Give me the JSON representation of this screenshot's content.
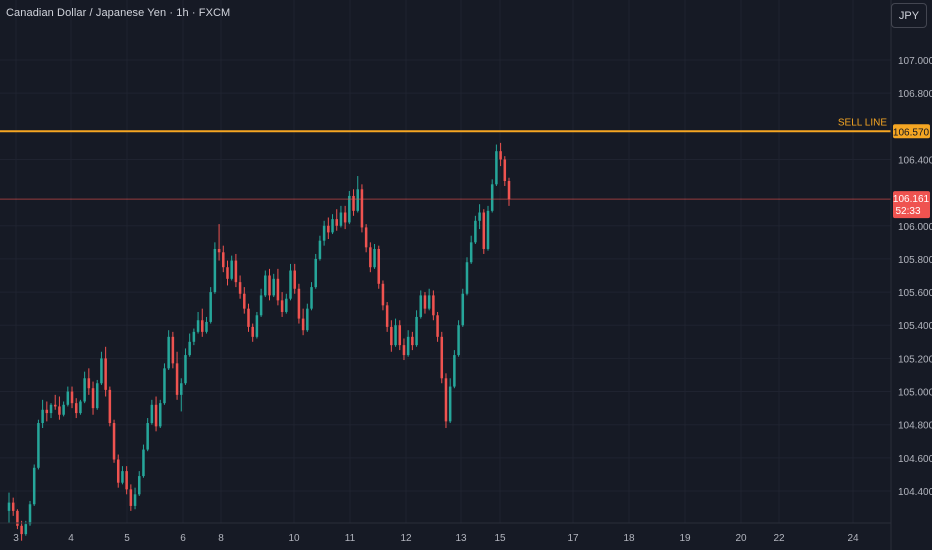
{
  "header": {
    "title": "Canadian Dollar / Japanese Yen · 1h · FXCM",
    "currency_button": "JPY"
  },
  "colors": {
    "background": "#161a25",
    "grid": "#1f2330",
    "axis_text": "#b2b5be",
    "up_candle": "#26a69a",
    "down_candle": "#ef5350",
    "sell_line": "#f5a623",
    "last_price_line": "#ef5350"
  },
  "chart_data": {
    "type": "candlestick",
    "title": "Canadian Dollar / Japanese Yen · 1h · FXCM",
    "x_ticks": [
      "3",
      "4",
      "5",
      "6",
      "8",
      "10",
      "11",
      "12",
      "13",
      "15",
      "17",
      "18",
      "19",
      "20",
      "22",
      "24"
    ],
    "y_ticks": [
      "107.000",
      "106.800",
      "106.400",
      "106.000",
      "105.800",
      "105.600",
      "105.400",
      "105.200",
      "105.000",
      "104.800",
      "104.600",
      "104.400"
    ],
    "ylim": [
      104.2,
      107.0
    ],
    "sell_line": {
      "label": "SELL LINE",
      "value": 106.57,
      "value_label": "106.570"
    },
    "last_price": {
      "value": 106.161,
      "value_label": "106.161",
      "countdown": "52:33"
    },
    "candles_ohlc": [
      [
        104.28,
        104.39,
        104.21,
        104.33
      ],
      [
        104.33,
        104.36,
        104.25,
        104.28
      ],
      [
        104.28,
        104.29,
        104.17,
        104.19
      ],
      [
        104.19,
        104.22,
        104.1,
        104.14
      ],
      [
        104.14,
        104.22,
        104.13,
        104.2
      ],
      [
        104.2,
        104.34,
        104.19,
        104.32
      ],
      [
        104.32,
        104.56,
        104.31,
        104.54
      ],
      [
        104.54,
        104.83,
        104.53,
        104.81
      ],
      [
        104.81,
        104.95,
        104.78,
        104.89
      ],
      [
        104.89,
        104.94,
        104.82,
        104.87
      ],
      [
        104.87,
        104.93,
        104.84,
        104.92
      ],
      [
        104.92,
        104.98,
        104.89,
        104.91
      ],
      [
        104.91,
        104.97,
        104.83,
        104.86
      ],
      [
        104.86,
        104.94,
        104.85,
        104.92
      ],
      [
        104.92,
        105.03,
        104.91,
        105.0
      ],
      [
        105.0,
        105.03,
        104.9,
        104.93
      ],
      [
        104.93,
        104.96,
        104.84,
        104.87
      ],
      [
        104.87,
        104.95,
        104.86,
        104.94
      ],
      [
        104.94,
        105.12,
        104.93,
        105.08
      ],
      [
        105.08,
        105.14,
        104.98,
        105.02
      ],
      [
        105.02,
        105.06,
        104.86,
        104.9
      ],
      [
        104.9,
        105.07,
        104.89,
        105.05
      ],
      [
        105.05,
        105.24,
        105.04,
        105.2
      ],
      [
        105.2,
        105.27,
        104.97,
        105.01
      ],
      [
        105.01,
        105.03,
        104.79,
        104.81
      ],
      [
        104.81,
        104.83,
        104.57,
        104.59
      ],
      [
        104.59,
        104.62,
        104.42,
        104.45
      ],
      [
        104.45,
        104.55,
        104.44,
        104.52
      ],
      [
        104.52,
        104.55,
        104.38,
        104.41
      ],
      [
        104.41,
        104.44,
        104.28,
        104.31
      ],
      [
        104.31,
        104.42,
        104.29,
        104.38
      ],
      [
        104.38,
        104.52,
        104.37,
        104.49
      ],
      [
        104.49,
        104.68,
        104.48,
        104.65
      ],
      [
        104.65,
        104.84,
        104.64,
        104.81
      ],
      [
        104.81,
        104.95,
        104.8,
        104.92
      ],
      [
        104.92,
        104.97,
        104.76,
        104.79
      ],
      [
        104.79,
        104.95,
        104.78,
        104.93
      ],
      [
        104.93,
        105.17,
        104.92,
        105.14
      ],
      [
        105.14,
        105.37,
        105.13,
        105.33
      ],
      [
        105.33,
        105.36,
        105.14,
        105.17
      ],
      [
        105.17,
        105.24,
        104.95,
        104.98
      ],
      [
        104.98,
        105.08,
        104.88,
        105.05
      ],
      [
        105.05,
        105.26,
        105.04,
        105.22
      ],
      [
        105.22,
        105.35,
        105.21,
        105.3
      ],
      [
        105.3,
        105.38,
        105.28,
        105.36
      ],
      [
        105.36,
        105.48,
        105.35,
        105.43
      ],
      [
        105.43,
        105.5,
        105.33,
        105.36
      ],
      [
        105.36,
        105.45,
        105.35,
        105.42
      ],
      [
        105.42,
        105.63,
        105.41,
        105.6
      ],
      [
        105.6,
        105.9,
        105.59,
        105.86
      ],
      [
        105.86,
        106.01,
        105.79,
        105.84
      ],
      [
        105.84,
        105.88,
        105.72,
        105.75
      ],
      [
        105.75,
        105.79,
        105.64,
        105.68
      ],
      [
        105.68,
        105.82,
        105.67,
        105.79
      ],
      [
        105.79,
        105.83,
        105.63,
        105.66
      ],
      [
        105.66,
        105.7,
        105.56,
        105.59
      ],
      [
        105.59,
        105.63,
        105.47,
        105.5
      ],
      [
        105.5,
        105.53,
        105.36,
        105.39
      ],
      [
        105.39,
        105.41,
        105.3,
        105.33
      ],
      [
        105.33,
        105.48,
        105.32,
        105.46
      ],
      [
        105.46,
        105.62,
        105.45,
        105.58
      ],
      [
        105.58,
        105.73,
        105.57,
        105.7
      ],
      [
        105.7,
        105.74,
        105.55,
        105.58
      ],
      [
        105.58,
        105.71,
        105.57,
        105.68
      ],
      [
        105.68,
        105.74,
        105.52,
        105.55
      ],
      [
        105.55,
        105.6,
        105.45,
        105.48
      ],
      [
        105.48,
        105.59,
        105.47,
        105.56
      ],
      [
        105.56,
        105.77,
        105.55,
        105.73
      ],
      [
        105.73,
        105.77,
        105.59,
        105.62
      ],
      [
        105.62,
        105.65,
        105.41,
        105.44
      ],
      [
        105.44,
        105.5,
        105.34,
        105.37
      ],
      [
        105.37,
        105.53,
        105.36,
        105.5
      ],
      [
        105.5,
        105.66,
        105.49,
        105.63
      ],
      [
        105.63,
        105.83,
        105.62,
        105.8
      ],
      [
        105.8,
        105.94,
        105.79,
        105.91
      ],
      [
        105.91,
        106.03,
        105.88,
        106.0
      ],
      [
        106.0,
        106.05,
        105.92,
        105.96
      ],
      [
        105.96,
        106.07,
        105.95,
        106.04
      ],
      [
        106.04,
        106.1,
        105.97,
        106.0
      ],
      [
        106.0,
        106.12,
        105.99,
        106.08
      ],
      [
        106.08,
        106.12,
        105.98,
        106.02
      ],
      [
        106.02,
        106.21,
        106.01,
        106.18
      ],
      [
        106.18,
        106.22,
        106.06,
        106.09
      ],
      [
        106.09,
        106.3,
        106.08,
        106.22
      ],
      [
        106.22,
        106.25,
        105.96,
        105.99
      ],
      [
        105.99,
        106.01,
        105.84,
        105.87
      ],
      [
        105.87,
        105.9,
        105.72,
        105.75
      ],
      [
        105.75,
        105.89,
        105.74,
        105.86
      ],
      [
        105.86,
        105.88,
        105.62,
        105.65
      ],
      [
        105.65,
        105.67,
        105.49,
        105.52
      ],
      [
        105.52,
        105.54,
        105.36,
        105.39
      ],
      [
        105.39,
        105.43,
        105.24,
        105.28
      ],
      [
        105.28,
        105.44,
        105.27,
        105.4
      ],
      [
        105.4,
        105.43,
        105.25,
        105.28
      ],
      [
        105.28,
        105.32,
        105.19,
        105.22
      ],
      [
        105.22,
        105.37,
        105.21,
        105.33
      ],
      [
        105.33,
        105.36,
        105.25,
        105.28
      ],
      [
        105.28,
        105.49,
        105.27,
        105.45
      ],
      [
        105.45,
        105.61,
        105.44,
        105.58
      ],
      [
        105.58,
        105.6,
        105.47,
        105.5
      ],
      [
        105.5,
        105.62,
        105.49,
        105.58
      ],
      [
        105.58,
        105.61,
        105.43,
        105.46
      ],
      [
        105.46,
        105.48,
        105.3,
        105.33
      ],
      [
        105.33,
        105.36,
        105.05,
        105.08
      ],
      [
        105.08,
        105.11,
        104.78,
        104.82
      ],
      [
        104.82,
        105.08,
        104.81,
        105.03
      ],
      [
        105.03,
        105.25,
        105.02,
        105.22
      ],
      [
        105.22,
        105.43,
        105.21,
        105.4
      ],
      [
        105.4,
        105.62,
        105.39,
        105.59
      ],
      [
        105.59,
        105.81,
        105.58,
        105.78
      ],
      [
        105.78,
        105.94,
        105.77,
        105.9
      ],
      [
        105.9,
        106.06,
        105.89,
        106.03
      ],
      [
        106.03,
        106.13,
        105.98,
        106.08
      ],
      [
        106.08,
        106.1,
        105.83,
        105.86
      ],
      [
        105.86,
        106.12,
        105.85,
        106.09
      ],
      [
        106.09,
        106.28,
        106.08,
        106.25
      ],
      [
        106.25,
        106.49,
        106.24,
        106.45
      ],
      [
        106.45,
        106.5,
        106.36,
        106.4
      ],
      [
        106.4,
        106.42,
        106.24,
        106.27
      ],
      [
        106.27,
        106.29,
        106.12,
        106.161
      ]
    ]
  }
}
